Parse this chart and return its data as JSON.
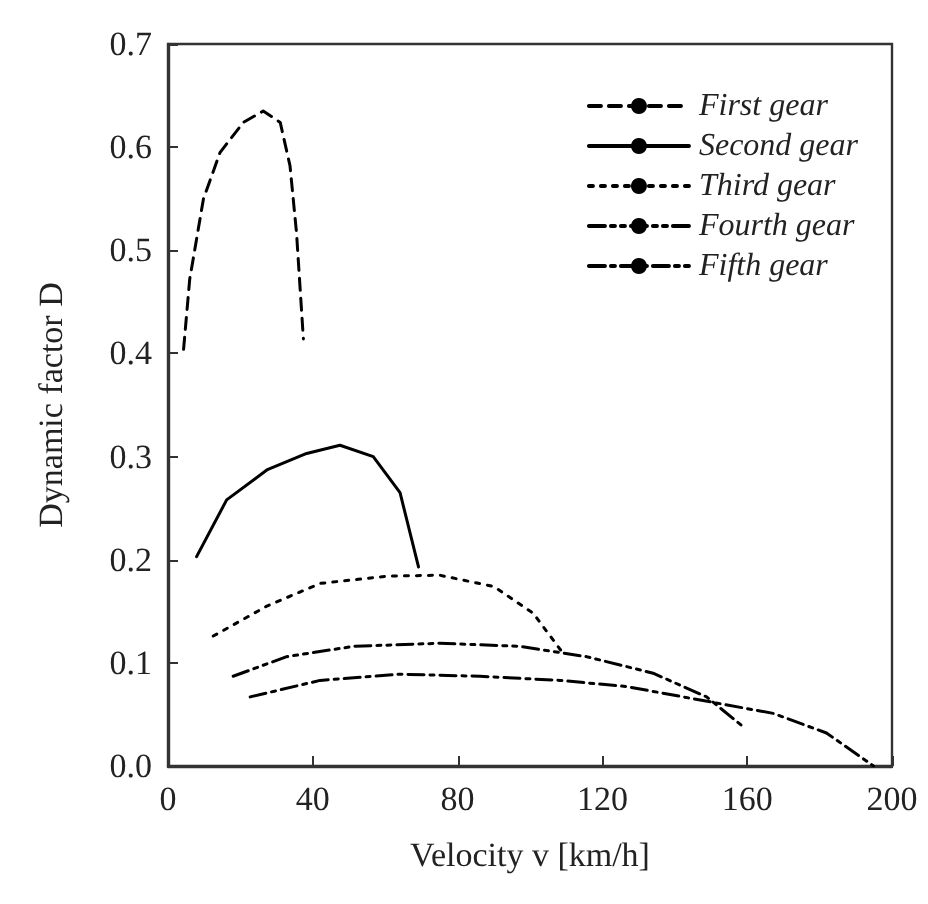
{
  "chart_data": {
    "type": "line",
    "xlabel": "Velocity v [km/h]",
    "ylabel": "Dynamic factor D",
    "xlim": [
      0,
      200
    ],
    "xticks": [
      0,
      40,
      80,
      120,
      160,
      200
    ],
    "ylim": [
      0,
      0.7
    ],
    "yticks": [
      {
        "value": 0,
        "label": "0.0"
      },
      {
        "value": 0.1,
        "label": "0.1"
      },
      {
        "value": 0.2,
        "label": "0.2"
      },
      {
        "value": 0.3,
        "label": "0.3"
      },
      {
        "value": 0.4,
        "label": "0.4"
      },
      {
        "value": 0.5,
        "label": "0.5"
      },
      {
        "value": 0.6,
        "label": "0.6"
      },
      {
        "value": 0.7,
        "label": "0.7"
      }
    ],
    "grid": false,
    "legend": "top right",
    "marker": "none",
    "series": [
      {
        "name": "First gear",
        "color": "#000000",
        "line_style": "dashed",
        "x": [
          4.3,
          6,
          9.8,
          14.4,
          20.8,
          26.3,
          31,
          33.7,
          35.5,
          37.4
        ],
        "values": [
          0.404,
          0.472,
          0.55,
          0.595,
          0.624,
          0.635,
          0.624,
          0.582,
          0.517,
          0.414
        ]
      },
      {
        "name": "Second gear",
        "color": "#000000",
        "line_style": "solid",
        "x": [
          7.9,
          16.2,
          27.3,
          38.3,
          47.5,
          56.7,
          64.1,
          69.2
        ],
        "values": [
          0.203,
          0.258,
          0.287,
          0.303,
          0.311,
          0.3,
          0.265,
          0.193
        ]
      },
      {
        "name": "Third gear",
        "color": "#000000",
        "line_style": "dotted",
        "x": [
          12.5,
          27.3,
          42,
          60.4,
          75,
          90,
          100.9,
          109.2
        ],
        "values": [
          0.126,
          0.155,
          0.177,
          0.184,
          0.185,
          0.174,
          0.148,
          0.109
        ]
      },
      {
        "name": "Fourth gear",
        "color": "#000000",
        "line_style": "dashdotdot",
        "x": [
          18,
          32.8,
          51.2,
          75,
          97.2,
          115.6,
          134,
          148.8,
          158.9
        ],
        "values": [
          0.087,
          0.106,
          0.116,
          0.119,
          0.116,
          0.106,
          0.09,
          0.067,
          0.038
        ]
      },
      {
        "name": "Fifth gear",
        "color": "#000000",
        "line_style": "dashdot",
        "x": [
          22.7,
          42,
          64.1,
          86.2,
          108.3,
          126.7,
          147,
          167.2,
          181.9,
          194.9
        ],
        "values": [
          0.067,
          0.083,
          0.089,
          0.087,
          0.083,
          0.077,
          0.064,
          0.051,
          0.032,
          0
        ]
      }
    ]
  }
}
